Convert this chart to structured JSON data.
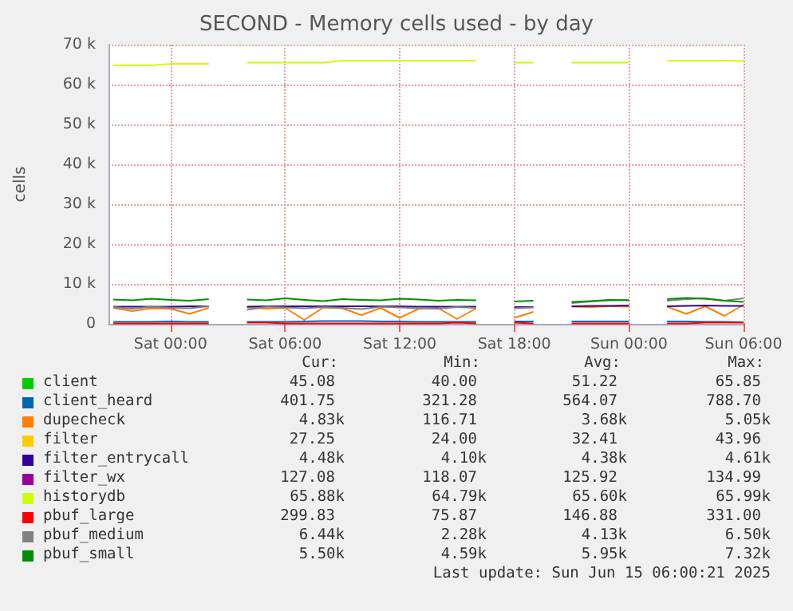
{
  "chart_data": {
    "type": "line",
    "title": "SECOND - Memory cells used - by day",
    "ylabel": "cells",
    "x": [
      "2025-06-13T21:00",
      "2025-06-13T22:00",
      "2025-06-13T23:00",
      "2025-06-14T00:00",
      "2025-06-14T01:00",
      "2025-06-14T02:00",
      "2025-06-14T03:00",
      "2025-06-14T04:00",
      "2025-06-14T05:00",
      "2025-06-14T06:00",
      "2025-06-14T07:00",
      "2025-06-14T08:00",
      "2025-06-14T09:00",
      "2025-06-14T10:00",
      "2025-06-14T11:00",
      "2025-06-14T12:00",
      "2025-06-14T13:00",
      "2025-06-14T14:00",
      "2025-06-14T15:00",
      "2025-06-14T16:00",
      "2025-06-14T17:00",
      "2025-06-14T18:00",
      "2025-06-14T19:00",
      "2025-06-14T20:00",
      "2025-06-14T21:00",
      "2025-06-14T22:00",
      "2025-06-14T23:00",
      "2025-06-15T00:00",
      "2025-06-15T01:00",
      "2025-06-15T02:00",
      "2025-06-15T03:00",
      "2025-06-15T04:00",
      "2025-06-15T05:00",
      "2025-06-15T06:00"
    ],
    "series": [
      {
        "name": "client",
        "color": "#00cc00",
        "values": [
          null,
          null,
          null,
          null,
          null,
          null,
          null,
          null,
          null,
          null,
          null,
          null,
          null,
          null,
          null,
          null,
          null,
          null,
          null,
          null,
          null,
          null,
          null,
          null,
          null,
          null,
          null,
          null,
          null,
          null,
          null,
          null,
          null,
          null
        ]
      },
      {
        "name": "client_heard",
        "color": "#0066b3",
        "values": [
          500,
          500,
          500,
          600,
          500,
          500,
          null,
          500,
          500,
          500,
          600,
          700,
          700,
          700,
          600,
          600,
          500,
          500,
          500,
          500,
          null,
          600,
          600,
          null,
          600,
          600,
          600,
          600,
          null,
          600,
          600,
          500,
          500,
          400
        ]
      },
      {
        "name": "dupecheck",
        "color": "#ff8000",
        "values": [
          4000,
          3200,
          3900,
          3800,
          2500,
          4000,
          null,
          4100,
          3800,
          4000,
          1000,
          4100,
          3900,
          2200,
          4000,
          1500,
          3800,
          4000,
          1200,
          3900,
          null,
          1500,
          3000,
          null,
          4300,
          4200,
          4400,
          4300,
          null,
          4300,
          2500,
          4400,
          2000,
          4800
        ]
      },
      {
        "name": "filter",
        "color": "#ffcc00",
        "values": [
          null,
          null,
          null,
          null,
          null,
          null,
          null,
          null,
          null,
          null,
          null,
          null,
          null,
          null,
          null,
          null,
          null,
          null,
          null,
          null,
          null,
          null,
          null,
          null,
          null,
          null,
          null,
          null,
          null,
          null,
          null,
          null,
          null,
          null
        ]
      },
      {
        "name": "filter_entrycall",
        "color": "#330099",
        "values": [
          4300,
          4300,
          4300,
          4300,
          4400,
          4400,
          null,
          4300,
          4400,
          4400,
          4400,
          4400,
          4400,
          4400,
          4400,
          4400,
          4300,
          4300,
          4300,
          4300,
          null,
          4200,
          4200,
          null,
          4400,
          4500,
          4500,
          4600,
          null,
          4400,
          4500,
          4600,
          4500,
          4500
        ]
      },
      {
        "name": "filter_wx",
        "color": "#990099",
        "values": [
          null,
          null,
          null,
          null,
          null,
          null,
          null,
          null,
          null,
          null,
          null,
          null,
          null,
          null,
          null,
          null,
          null,
          null,
          null,
          null,
          null,
          null,
          null,
          null,
          null,
          null,
          null,
          null,
          null,
          null,
          null,
          null,
          null,
          null
        ]
      },
      {
        "name": "historydb",
        "color": "#ccff00",
        "values": [
          64800,
          64800,
          64800,
          65200,
          65200,
          65200,
          null,
          65500,
          65500,
          65500,
          65500,
          65500,
          66000,
          66000,
          66000,
          66000,
          66000,
          66000,
          66000,
          66000,
          null,
          65500,
          65500,
          null,
          65500,
          65500,
          65500,
          65500,
          null,
          66000,
          66000,
          66000,
          66000,
          65900
        ]
      },
      {
        "name": "pbuf_large",
        "color": "#ff0000",
        "values": [
          100,
          100,
          100,
          100,
          100,
          100,
          null,
          300,
          300,
          100,
          100,
          100,
          100,
          100,
          100,
          100,
          100,
          100,
          300,
          100,
          null,
          300,
          100,
          null,
          100,
          100,
          100,
          100,
          null,
          100,
          100,
          300,
          300,
          300
        ]
      },
      {
        "name": "pbuf_medium",
        "color": "#808080",
        "values": [
          4200,
          3800,
          4300,
          4000,
          3900,
          4400,
          null,
          3500,
          4300,
          4100,
          3900,
          4200,
          4000,
          3700,
          4300,
          4100,
          3900,
          3800,
          4200,
          4000,
          null,
          3900,
          4100,
          null,
          5200,
          5600,
          5900,
          6000,
          null,
          5800,
          6200,
          6400,
          5800,
          6400
        ]
      },
      {
        "name": "pbuf_small",
        "color": "#008f00",
        "values": [
          6100,
          5900,
          6300,
          6000,
          5800,
          6200,
          null,
          6100,
          5900,
          6400,
          6000,
          5700,
          6200,
          6000,
          5900,
          6300,
          6100,
          5800,
          6000,
          5900,
          null,
          5600,
          5800,
          null,
          5500,
          5700,
          6000,
          5900,
          null,
          6200,
          6500,
          6300,
          5800,
          5500
        ]
      }
    ],
    "xlim": [
      "2025-06-13T20:45",
      "2025-06-15T06:00"
    ],
    "xticks": [
      {
        "value": "2025-06-14T00:00",
        "label": "Sat 00:00"
      },
      {
        "value": "2025-06-14T06:00",
        "label": "Sat 06:00"
      },
      {
        "value": "2025-06-14T12:00",
        "label": "Sat 12:00"
      },
      {
        "value": "2025-06-14T18:00",
        "label": "Sat 18:00"
      },
      {
        "value": "2025-06-15T00:00",
        "label": "Sun 00:00"
      },
      {
        "value": "2025-06-15T06:00",
        "label": "Sun 06:00"
      }
    ],
    "ylim": [
      0,
      70000
    ],
    "yticks": [
      {
        "value": 0,
        "label": "0"
      },
      {
        "value": 10000,
        "label": "10 k"
      },
      {
        "value": 20000,
        "label": "20 k"
      },
      {
        "value": 30000,
        "label": "30 k"
      },
      {
        "value": 40000,
        "label": "40 k"
      },
      {
        "value": 50000,
        "label": "50 k"
      },
      {
        "value": 60000,
        "label": "60 k"
      },
      {
        "value": 70000,
        "label": "70 k"
      }
    ],
    "grid": true,
    "legend": "bottom",
    "annotations": [
      "Cur:",
      "Min:",
      "Avg:",
      "Max:",
      "45.08",
      "40.00",
      "51.22",
      "65.85",
      "401.75",
      "321.28",
      "564.07",
      "788.70",
      "4.83k",
      "116.71",
      "3.68k",
      "5.05k",
      "27.25",
      "24.00",
      "32.41",
      "43.96",
      "4.48k",
      "4.10k",
      "4.38k",
      "4.61k",
      "127.08",
      "118.07",
      "125.92",
      "134.99",
      "65.88k",
      "64.79k",
      "65.60k",
      "65.99k",
      "299.83",
      "75.87",
      "146.88",
      "331.00",
      "6.44k",
      "2.28k",
      "4.13k",
      "6.50k",
      "5.50k",
      "4.59k",
      "5.95k",
      "7.32k",
      "Last update: Sun Jun 15 06:00:21 2025"
    ]
  }
}
